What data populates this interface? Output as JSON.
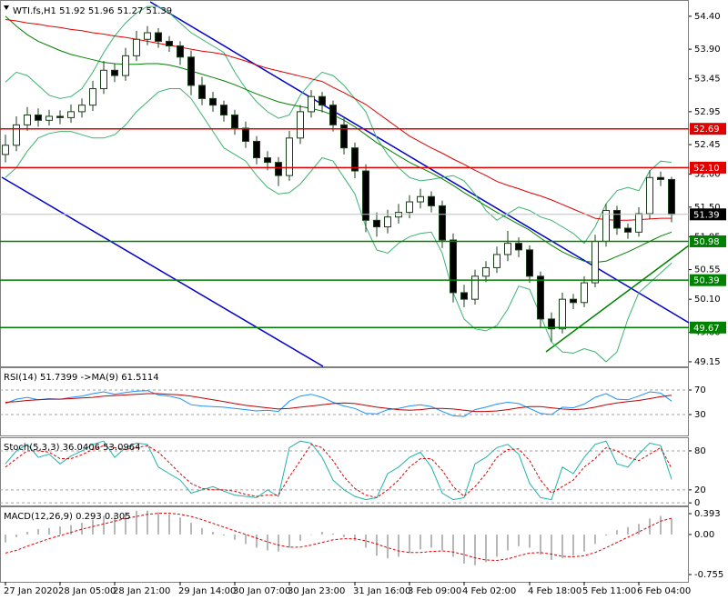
{
  "chart_data": [
    {
      "type": "candlestick",
      "title": "WTI.fs,H1  51.92 51.96 51.27 51.39",
      "categories": [
        "27 Jan 2020",
        null,
        null,
        null,
        null,
        "28 Jan 05:00",
        null,
        null,
        null,
        null,
        "28 Jan 21:00",
        null,
        null,
        null,
        null,
        null,
        "29 Jan 14:00",
        null,
        null,
        null,
        null,
        "30 Jan 07:00",
        null,
        null,
        null,
        null,
        "30 Jan 23:00",
        null,
        null,
        null,
        null,
        null,
        "31 Jan 16:00",
        null,
        null,
        null,
        null,
        "3 Feb 09:00",
        null,
        null,
        null,
        null,
        "4 Feb 02:00",
        null,
        null,
        null,
        null,
        null,
        "4 Feb 18:00",
        null,
        null,
        null,
        null,
        "5 Feb 11:00",
        null,
        null,
        null,
        null,
        "6 Feb 04:00",
        null,
        null,
        null
      ],
      "open": [
        52.3,
        52.44,
        52.75,
        52.9,
        52.82,
        52.88,
        52.86,
        52.95,
        53.05,
        53.3,
        53.58,
        53.5,
        53.8,
        54.05,
        54.15,
        54.02,
        53.95,
        53.78,
        53.35,
        53.15,
        53.05,
        52.9,
        52.7,
        52.5,
        52.25,
        52.18,
        51.98,
        52.55,
        52.95,
        53.18,
        53.05,
        52.75,
        52.4,
        52.05,
        51.3,
        51.2,
        51.35,
        51.42,
        51.58,
        51.66,
        51.52,
        51.0,
        50.2,
        50.1,
        50.45,
        50.58,
        50.78,
        50.95,
        50.85,
        50.45,
        49.8,
        49.65,
        50.1,
        50.05,
        50.35,
        50.98,
        51.45,
        51.18,
        51.12,
        51.4,
        51.95,
        51.92
      ],
      "high": [
        52.6,
        52.88,
        53.02,
        53.0,
        52.98,
        52.97,
        53.06,
        53.15,
        53.42,
        53.72,
        53.68,
        53.92,
        54.18,
        54.25,
        54.22,
        54.1,
        54.02,
        53.88,
        53.48,
        53.25,
        53.12,
        52.98,
        52.8,
        52.58,
        52.35,
        52.26,
        52.66,
        53.05,
        53.28,
        53.25,
        53.12,
        52.85,
        52.48,
        52.15,
        51.42,
        51.46,
        51.55,
        51.68,
        51.78,
        51.74,
        51.6,
        51.1,
        50.32,
        50.55,
        50.68,
        50.9,
        51.14,
        51.04,
        50.92,
        50.52,
        49.9,
        50.2,
        50.18,
        50.45,
        51.08,
        51.55,
        51.52,
        51.25,
        51.5,
        52.06,
        52.04,
        51.96
      ],
      "low": [
        52.18,
        52.35,
        52.66,
        52.72,
        52.74,
        52.76,
        52.78,
        52.86,
        52.96,
        53.22,
        53.4,
        53.42,
        53.72,
        53.96,
        53.92,
        53.86,
        53.66,
        53.2,
        53.05,
        52.95,
        52.8,
        52.6,
        52.4,
        52.15,
        52.06,
        51.82,
        51.9,
        52.46,
        52.86,
        52.94,
        52.65,
        52.3,
        51.94,
        51.12,
        51.05,
        51.1,
        51.25,
        51.33,
        51.48,
        51.42,
        50.88,
        50.05,
        49.98,
        50.02,
        50.36,
        50.5,
        50.68,
        50.74,
        50.35,
        49.68,
        49.45,
        49.58,
        49.95,
        49.98,
        50.28,
        50.9,
        51.08,
        51.02,
        51.05,
        51.32,
        51.82,
        51.27
      ],
      "close": [
        52.44,
        52.75,
        52.9,
        52.82,
        52.88,
        52.86,
        52.95,
        53.05,
        53.3,
        53.58,
        53.5,
        53.8,
        54.05,
        54.15,
        54.02,
        53.95,
        53.78,
        53.35,
        53.15,
        53.05,
        52.9,
        52.7,
        52.5,
        52.25,
        52.18,
        51.98,
        52.55,
        52.95,
        53.18,
        53.05,
        52.75,
        52.4,
        52.05,
        51.3,
        51.2,
        51.35,
        51.42,
        51.58,
        51.66,
        51.52,
        51.0,
        50.2,
        50.1,
        50.45,
        50.58,
        50.78,
        50.95,
        50.85,
        50.45,
        49.8,
        49.65,
        50.1,
        50.05,
        50.35,
        50.98,
        51.45,
        51.18,
        51.12,
        51.4,
        51.95,
        51.92,
        51.39
      ],
      "up_color": "#ffffff",
      "down_color": "#000000",
      "wick_color": "#1a3d1a",
      "series": [
        {
          "color": "#3cb371",
          "values": [
            53.4,
            53.55,
            53.5,
            53.35,
            53.2,
            53.15,
            53.18,
            53.3,
            53.55,
            53.85,
            54.1,
            54.3,
            54.45,
            54.55,
            54.55,
            54.45,
            54.3,
            54.15,
            54.05,
            53.95,
            53.85,
            53.55,
            53.3,
            53.1,
            52.95,
            52.85,
            52.9,
            53.2,
            53.4,
            53.55,
            53.5,
            53.35,
            53.15,
            52.95,
            52.55,
            52.3,
            52.1,
            51.95,
            51.9,
            51.92,
            51.95,
            51.98,
            51.9,
            51.7,
            51.45,
            51.3,
            51.4,
            51.5,
            51.45,
            51.35,
            51.3,
            51.2,
            51.1,
            50.95,
            51.2,
            51.55,
            51.75,
            51.8,
            51.75,
            52.05,
            52.2,
            52.18
          ]
        },
        {
          "color": "#3cb371",
          "values": [
            51.95,
            52.1,
            52.35,
            52.55,
            52.62,
            52.65,
            52.65,
            52.6,
            52.55,
            52.55,
            52.6,
            52.75,
            52.95,
            53.1,
            53.25,
            53.3,
            53.3,
            53.15,
            52.9,
            52.65,
            52.4,
            52.3,
            52.2,
            51.98,
            51.8,
            51.7,
            51.72,
            51.85,
            52.05,
            52.25,
            52.2,
            51.95,
            51.7,
            51.2,
            50.85,
            50.8,
            50.95,
            51.05,
            51.1,
            51.12,
            50.8,
            50.2,
            49.8,
            49.65,
            49.62,
            49.7,
            49.95,
            50.3,
            50.25,
            49.85,
            49.45,
            49.3,
            49.28,
            49.35,
            49.3,
            49.15,
            49.3,
            49.8,
            50.2,
            50.35,
            50.5,
            50.65
          ]
        },
        {
          "color": "#008000",
          "values": [
            54.4,
            54.25,
            54.12,
            54.02,
            53.95,
            53.88,
            53.82,
            53.78,
            53.74,
            53.7,
            53.68,
            53.67,
            53.67,
            53.68,
            53.68,
            53.66,
            53.62,
            53.57,
            53.52,
            53.47,
            53.42,
            53.36,
            53.29,
            53.22,
            53.16,
            53.1,
            53.06,
            53.03,
            53.0,
            52.96,
            52.9,
            52.82,
            52.72,
            52.6,
            52.48,
            52.38,
            52.28,
            52.18,
            52.1,
            52.02,
            51.93,
            51.83,
            51.72,
            51.62,
            51.52,
            51.42,
            51.33,
            51.24,
            51.15,
            51.03,
            50.92,
            50.82,
            50.74,
            50.68,
            50.66,
            50.68,
            50.75,
            50.82,
            50.9,
            50.98,
            51.06,
            51.12
          ]
        },
        {
          "color": "#e00000",
          "values": [
            54.35,
            54.33,
            54.3,
            54.28,
            54.25,
            54.23,
            54.2,
            54.18,
            54.15,
            54.13,
            54.1,
            54.08,
            54.05,
            54.02,
            53.99,
            53.96,
            53.93,
            53.9,
            53.87,
            53.85,
            53.82,
            53.77,
            53.72,
            53.66,
            53.61,
            53.57,
            53.53,
            53.49,
            53.45,
            53.41,
            53.32,
            53.24,
            53.15,
            53.06,
            52.94,
            52.82,
            52.7,
            52.58,
            52.49,
            52.4,
            52.32,
            52.23,
            52.15,
            52.06,
            51.98,
            51.89,
            51.83,
            51.78,
            51.72,
            51.67,
            51.61,
            51.54,
            51.47,
            51.4,
            51.33,
            51.31,
            51.3,
            51.3,
            51.31,
            51.32,
            51.33,
            51.33
          ]
        }
      ],
      "levels": [
        {
          "value": 52.69,
          "color": "#e00000"
        },
        {
          "value": {
            "value": 52.1,
            "label": "52.10"
          },
          "color": "#e00000"
        },
        {
          "value": 50.98,
          "color": "#008000"
        },
        {
          "value": 50.39,
          "color": "#008000"
        },
        {
          "value": 49.67,
          "color": "#008000"
        }
      ],
      "last_price": 51.39,
      "ylim": [
        49.08,
        54.62
      ],
      "yticks": [
        {
          "value": 54.4,
          "label": "54.40"
        },
        {
          "value": 53.9,
          "label": "53.90"
        },
        53.45,
        52.95,
        52.45,
        51.05,
        {
          "value": 50.55,
          "label": "50.55"
        },
        {
          "value": 50.1,
          "label": "50.10"
        },
        {
          "value": 49.6,
          "label": "49.60"
        },
        49.15,
        {
          "value": 52.0,
          "label": "52.00"
        },
        {
          "value": 51.5,
          "label": "51.50"
        }
      ],
      "grid": false
    },
    {
      "type": "line",
      "title": "RSI(14) 51.7399  ->MA(9) 61.5114",
      "series": [
        {
          "color": "#1e90ff",
          "values": [
            48,
            55,
            58,
            54,
            56,
            55,
            58,
            60,
            64,
            67,
            63,
            66,
            68,
            69,
            62,
            60,
            56,
            46,
            44,
            43,
            42,
            40,
            38,
            36,
            37,
            35,
            52,
            60,
            63,
            58,
            50,
            44,
            40,
            32,
            31,
            38,
            40,
            44,
            46,
            43,
            35,
            28,
            27,
            38,
            42,
            47,
            50,
            48,
            40,
            32,
            30,
            42,
            41,
            47,
            58,
            64,
            55,
            54,
            60,
            67,
            65,
            51.74
          ]
        },
        {
          "color": "#c00000",
          "values": [
            50,
            51,
            53,
            54,
            55,
            55,
            56,
            57,
            58,
            60,
            61,
            62,
            63,
            64,
            64,
            63,
            62,
            60,
            57,
            54,
            51,
            48,
            45,
            43,
            41,
            39,
            40,
            42,
            44,
            46,
            48,
            49,
            48,
            45,
            42,
            40,
            38,
            37,
            38,
            40,
            40,
            39,
            37,
            35,
            35,
            36,
            38,
            41,
            43,
            43,
            41,
            39,
            38,
            39,
            42,
            46,
            49,
            51,
            53,
            56,
            59,
            61.51
          ]
        }
      ],
      "ylim": [
        -4,
        105.5
      ],
      "yticks": [
        70,
        30
      ],
      "grid": true
    },
    {
      "type": "line",
      "title": "Stoch(5,3,3) 36.0406 53.0964",
      "series": [
        {
          "color": "#20b2aa",
          "values": [
            60,
            80,
            90,
            70,
            75,
            60,
            72,
            80,
            90,
            95,
            70,
            85,
            92,
            90,
            55,
            45,
            35,
            15,
            20,
            25,
            18,
            12,
            10,
            8,
            20,
            10,
            85,
            95,
            92,
            70,
            35,
            20,
            10,
            5,
            8,
            45,
            55,
            70,
            78,
            55,
            15,
            5,
            8,
            60,
            70,
            85,
            90,
            75,
            30,
            8,
            5,
            55,
            45,
            70,
            90,
            95,
            60,
            55,
            75,
            92,
            88,
            36.04
          ]
        },
        {
          "color": "#e00000",
          "dash": true,
          "values": [
            55,
            68,
            80,
            80,
            78,
            68,
            68,
            74,
            82,
            88,
            85,
            82,
            85,
            88,
            78,
            62,
            45,
            30,
            22,
            20,
            20,
            18,
            13,
            10,
            12,
            12,
            40,
            65,
            90,
            85,
            65,
            40,
            22,
            12,
            8,
            20,
            35,
            55,
            68,
            68,
            50,
            25,
            10,
            25,
            45,
            70,
            82,
            83,
            65,
            35,
            15,
            25,
            35,
            55,
            68,
            85,
            80,
            70,
            65,
            75,
            85,
            53.1
          ]
        }
      ],
      "ylim": [
        -4,
        99.5
      ],
      "yticks": [
        80,
        20,
        0
      ],
      "grid": true
    },
    {
      "type": "bar",
      "title": "MACD(12,26,9) 0.293 0.305",
      "color": "#b8b8b8",
      "values": [
        -0.15,
        -0.05,
        0.05,
        0.1,
        0.12,
        0.15,
        0.18,
        0.22,
        0.28,
        0.35,
        0.38,
        0.42,
        0.45,
        0.45,
        0.42,
        0.38,
        0.32,
        0.22,
        0.12,
        0.05,
        -0.02,
        -0.1,
        -0.18,
        -0.25,
        -0.3,
        -0.32,
        -0.25,
        -0.12,
        0.0,
        0.05,
        0.02,
        -0.05,
        -0.12,
        -0.25,
        -0.4,
        -0.45,
        -0.42,
        -0.35,
        -0.28,
        -0.25,
        -0.3,
        -0.42,
        -0.55,
        -0.58,
        -0.52,
        -0.42,
        -0.3,
        -0.22,
        -0.25,
        -0.38,
        -0.48,
        -0.45,
        -0.4,
        -0.32,
        -0.18,
        -0.02,
        0.08,
        0.14,
        0.2,
        0.3,
        0.35,
        0.293
      ],
      "series": [
        {
          "color": "#e00000",
          "dash": true,
          "values": [
            -0.35,
            -0.3,
            -0.22,
            -0.15,
            -0.08,
            -0.02,
            0.04,
            0.1,
            0.15,
            0.2,
            0.25,
            0.3,
            0.34,
            0.38,
            0.4,
            0.4,
            0.38,
            0.34,
            0.28,
            0.21,
            0.14,
            0.07,
            0.0,
            -0.07,
            -0.14,
            -0.2,
            -0.24,
            -0.24,
            -0.2,
            -0.15,
            -0.1,
            -0.08,
            -0.08,
            -0.12,
            -0.18,
            -0.25,
            -0.31,
            -0.34,
            -0.34,
            -0.32,
            -0.31,
            -0.33,
            -0.38,
            -0.44,
            -0.48,
            -0.49,
            -0.46,
            -0.4,
            -0.35,
            -0.34,
            -0.37,
            -0.41,
            -0.42,
            -0.4,
            -0.34,
            -0.25,
            -0.15,
            -0.05,
            0.05,
            0.15,
            0.25,
            0.305
          ]
        }
      ],
      "ylim": [
        -0.892,
        0.513
      ],
      "yticks": [
        0.393,
        {
          "value": 0,
          "label": "0.00"
        },
        -0.755
      ],
      "grid": false
    }
  ]
}
